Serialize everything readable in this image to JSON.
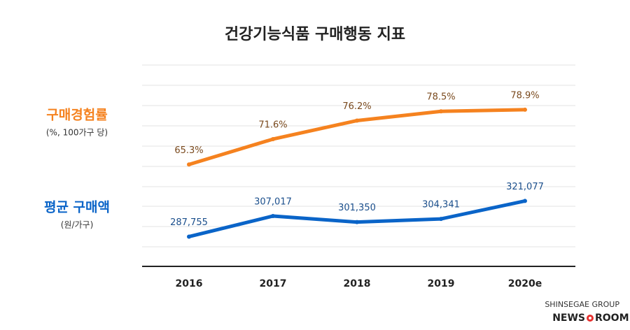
{
  "chart_data": {
    "type": "line",
    "title": "건강기능식품 구매행동 지표",
    "categories": [
      "2016",
      "2017",
      "2018",
      "2019",
      "2020e"
    ],
    "ylim": [
      40,
      90
    ],
    "y2lim": [
      260000,
      448000
    ],
    "series": [
      {
        "name": "구매경험률",
        "unit": "(%, 100가구 당)",
        "color": "#f5821f",
        "values": [
          65.3,
          71.6,
          76.2,
          78.5,
          78.9
        ],
        "value_labels": [
          "65.3%",
          "71.6%",
          "76.2%",
          "78.5%",
          "78.9%"
        ]
      },
      {
        "name": "평균 구매액",
        "unit": "(원/가구)",
        "color": "#0a64c8",
        "axis": "y2",
        "values": [
          287755,
          307017,
          301350,
          304341,
          321077
        ],
        "value_labels": [
          "287,755",
          "307,017",
          "301,350",
          "304,341",
          "321,077"
        ]
      }
    ]
  },
  "footer": {
    "group": "SHINSEGAE GROUP",
    "news": "NEWS",
    "room": "ROOM"
  }
}
